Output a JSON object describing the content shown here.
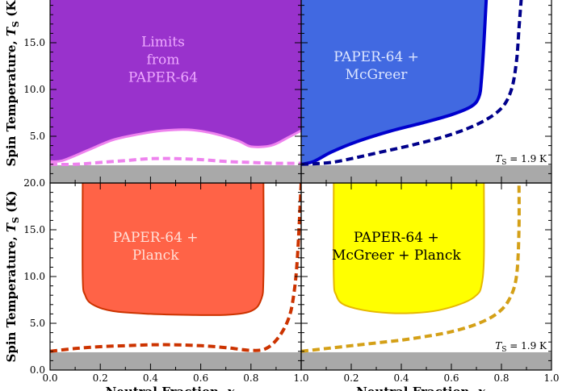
{
  "chart_data": [
    {
      "panel": "top-left",
      "type": "area",
      "xlim": [
        0,
        1
      ],
      "ylim": [
        0,
        20
      ],
      "fill_color": "#9932cc",
      "edge_color": "#ee82ee",
      "region_label": [
        "Limits",
        "from",
        "PAPER-64"
      ],
      "region_label_color": "#eeaaff",
      "lower_boundary": {
        "x": [
          0.0,
          0.05,
          0.15,
          0.25,
          0.35,
          0.45,
          0.55,
          0.65,
          0.75,
          0.8,
          0.88,
          0.95,
          1.0
        ],
        "y": [
          2.3,
          2.4,
          3.5,
          4.6,
          5.2,
          5.6,
          5.7,
          5.3,
          4.5,
          3.9,
          4.0,
          4.9,
          5.6
        ]
      },
      "dashed_boundary": {
        "x": [
          0.0,
          0.1,
          0.2,
          0.3,
          0.4,
          0.5,
          0.6,
          0.7,
          0.8,
          0.9,
          1.0
        ],
        "y": [
          2.0,
          2.0,
          2.2,
          2.4,
          2.6,
          2.6,
          2.5,
          2.3,
          2.2,
          2.1,
          2.1
        ]
      },
      "dashed_color": "#ee82ee",
      "excluded_below": 1.9,
      "ts_note": ""
    },
    {
      "panel": "top-right",
      "type": "area",
      "xlim": [
        0,
        1
      ],
      "ylim": [
        0,
        20
      ],
      "fill_color": "#4169e1",
      "edge_color": "#0000cd",
      "region_label": [
        "PAPER-64 +",
        "McGreer"
      ],
      "region_label_color": "#dde6ff",
      "right_boundary": {
        "x": [
          0.0,
          0.05,
          0.12,
          0.22,
          0.35,
          0.48,
          0.6,
          0.68,
          0.71,
          0.72,
          0.73,
          0.74
        ],
        "y": [
          2.0,
          2.3,
          3.3,
          4.4,
          5.5,
          6.4,
          7.3,
          8.2,
          9.2,
          11.0,
          15.0,
          20.0
        ]
      },
      "dashed_boundary": {
        "x": [
          0.0,
          0.05,
          0.12,
          0.2,
          0.3,
          0.45,
          0.6,
          0.72,
          0.8,
          0.84,
          0.86,
          0.87,
          0.88
        ],
        "y": [
          2.0,
          2.05,
          2.2,
          2.6,
          3.2,
          4.1,
          5.2,
          6.5,
          8.0,
          10.0,
          13.0,
          16.5,
          20.0
        ]
      },
      "dashed_color": "#00008b",
      "excluded_below": 1.9,
      "ts_note": "T_S = 1.9 K"
    },
    {
      "panel": "bottom-left",
      "type": "area",
      "xlim": [
        0,
        1
      ],
      "ylim": [
        0,
        20
      ],
      "fill_color": "#ff6347",
      "edge_color": "#cc3300",
      "region_label": [
        "PAPER-64 +",
        "Planck"
      ],
      "region_label_color": "#ffe0d8",
      "region_boundary": {
        "x": [
          0.13,
          0.13,
          0.14,
          0.17,
          0.25,
          0.4,
          0.55,
          0.7,
          0.8,
          0.84,
          0.85,
          0.85
        ],
        "y": [
          20.0,
          10.0,
          8.0,
          7.0,
          6.3,
          6.0,
          5.9,
          5.9,
          6.3,
          7.5,
          10.0,
          20.0
        ]
      },
      "dashed_boundary": {
        "x": [
          0.0,
          0.1,
          0.2,
          0.3,
          0.4,
          0.5,
          0.6,
          0.7,
          0.8,
          0.86,
          0.91,
          0.95,
          0.97,
          0.985,
          1.0
        ],
        "y": [
          2.0,
          2.3,
          2.5,
          2.6,
          2.7,
          2.7,
          2.6,
          2.4,
          2.1,
          2.3,
          3.5,
          5.5,
          8.0,
          12.0,
          20.0
        ]
      },
      "dashed_color": "#cc3300",
      "excluded_below": 1.9,
      "ts_note": ""
    },
    {
      "panel": "bottom-right",
      "type": "area",
      "xlim": [
        0,
        1
      ],
      "ylim": [
        0,
        20
      ],
      "fill_color": "#ffff00",
      "edge_color": "#e6b800",
      "region_label": [
        "PAPER-64 +",
        "McGreer + Planck"
      ],
      "region_label_color": "#000000",
      "region_boundary": {
        "x": [
          0.13,
          0.13,
          0.14,
          0.17,
          0.25,
          0.35,
          0.45,
          0.55,
          0.65,
          0.7,
          0.72,
          0.73,
          0.73
        ],
        "y": [
          20.0,
          10.0,
          8.0,
          7.0,
          6.4,
          6.1,
          6.1,
          6.4,
          7.2,
          8.0,
          9.0,
          12.0,
          20.0
        ]
      },
      "dashed_boundary": {
        "x": [
          0.0,
          0.1,
          0.2,
          0.3,
          0.4,
          0.5,
          0.6,
          0.7,
          0.78,
          0.83,
          0.86,
          0.87,
          0.87
        ],
        "y": [
          2.0,
          2.3,
          2.6,
          2.9,
          3.2,
          3.6,
          4.1,
          4.9,
          6.0,
          7.5,
          10.0,
          15.0,
          20.0
        ]
      },
      "dashed_color": "#d4a017",
      "excluded_below": 1.9,
      "ts_note": "T_S = 1.9 K"
    }
  ],
  "axes": {
    "ylabel_top": "Spin Temperature, T_S (K)",
    "ylabel_bottom": "Spin Temperature, T_S (K)",
    "xlabel_left": "Neutral Fraction, x_HI",
    "xlabel_right": "Neutral Fraction, x_HI",
    "ytick_labels_top": [
      "5.0",
      "10.0",
      "15.0"
    ],
    "ytick_labels_bottom": [
      "0.0",
      "5.0",
      "10.0",
      "15.0",
      "20.0"
    ],
    "xtick_labels_left": [
      "0.0",
      "0.2",
      "0.4",
      "0.6",
      "0.8",
      "1.0"
    ],
    "xtick_labels_right": [
      "0.2",
      "0.4",
      "0.6",
      "0.8",
      "1.0"
    ]
  },
  "colors": {
    "excluded_band": "#a9a9a9",
    "frame": "#000000"
  }
}
